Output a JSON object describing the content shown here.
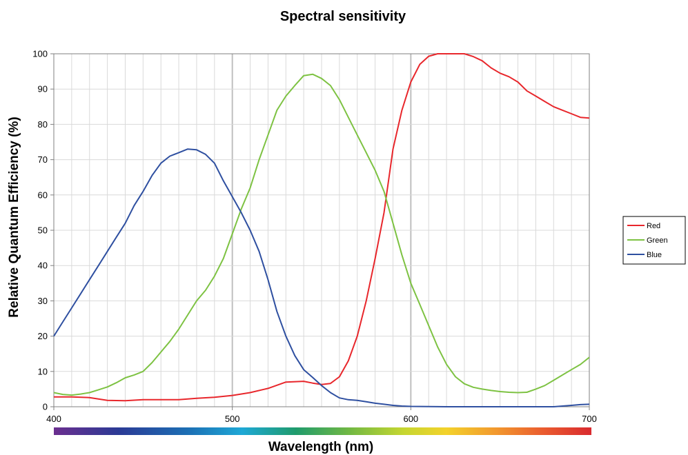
{
  "chart_data": {
    "type": "line",
    "title": "Spectral sensitivity",
    "xlabel": "Wavelength (nm)",
    "ylabel": "Relative Quantum Efficiency (%)",
    "xlim": [
      400,
      700
    ],
    "ylim": [
      0,
      100
    ],
    "x_ticks": [
      400,
      500,
      600,
      700
    ],
    "y_ticks": [
      0,
      10,
      20,
      30,
      40,
      50,
      60,
      70,
      80,
      90,
      100
    ],
    "grid": true,
    "legend_position": "right",
    "spectrum_bar": true,
    "series": [
      {
        "name": "Red",
        "color": "#e8262b",
        "points": [
          [
            400,
            2.8
          ],
          [
            410,
            2.8
          ],
          [
            420,
            2.6
          ],
          [
            430,
            1.8
          ],
          [
            440,
            1.7
          ],
          [
            450,
            2
          ],
          [
            460,
            2
          ],
          [
            470,
            2
          ],
          [
            480,
            2.4
          ],
          [
            490,
            2.7
          ],
          [
            500,
            3.2
          ],
          [
            510,
            4
          ],
          [
            520,
            5.2
          ],
          [
            530,
            7
          ],
          [
            540,
            7.2
          ],
          [
            545,
            6.7
          ],
          [
            550,
            6.3
          ],
          [
            555,
            6.6
          ],
          [
            560,
            8.5
          ],
          [
            565,
            13
          ],
          [
            570,
            20
          ],
          [
            575,
            30
          ],
          [
            580,
            42
          ],
          [
            585,
            55
          ],
          [
            590,
            73
          ],
          [
            595,
            84
          ],
          [
            600,
            92
          ],
          [
            605,
            97
          ],
          [
            610,
            99.3
          ],
          [
            615,
            100
          ],
          [
            620,
            100
          ],
          [
            625,
            100
          ],
          [
            630,
            100
          ],
          [
            635,
            99.2
          ],
          [
            640,
            98
          ],
          [
            645,
            96
          ],
          [
            650,
            94.5
          ],
          [
            655,
            93.5
          ],
          [
            660,
            92
          ],
          [
            665,
            89.5
          ],
          [
            670,
            88
          ],
          [
            675,
            86.5
          ],
          [
            680,
            85
          ],
          [
            685,
            84
          ],
          [
            690,
            83
          ],
          [
            695,
            82
          ],
          [
            700,
            81.8
          ]
        ]
      },
      {
        "name": "Green",
        "color": "#7dc242",
        "points": [
          [
            400,
            4
          ],
          [
            405,
            3.5
          ],
          [
            410,
            3.3
          ],
          [
            415,
            3.6
          ],
          [
            420,
            4
          ],
          [
            425,
            4.8
          ],
          [
            430,
            5.6
          ],
          [
            435,
            6.8
          ],
          [
            440,
            8.2
          ],
          [
            445,
            9
          ],
          [
            450,
            10
          ],
          [
            455,
            12.5
          ],
          [
            460,
            15.5
          ],
          [
            465,
            18.5
          ],
          [
            470,
            22
          ],
          [
            475,
            26
          ],
          [
            480,
            30
          ],
          [
            485,
            33
          ],
          [
            490,
            37
          ],
          [
            495,
            42
          ],
          [
            500,
            49
          ],
          [
            505,
            56
          ],
          [
            510,
            62
          ],
          [
            515,
            70
          ],
          [
            520,
            77
          ],
          [
            525,
            84
          ],
          [
            530,
            88
          ],
          [
            535,
            91
          ],
          [
            540,
            93.8
          ],
          [
            545,
            94.2
          ],
          [
            550,
            93
          ],
          [
            555,
            91
          ],
          [
            560,
            87
          ],
          [
            565,
            82
          ],
          [
            570,
            77
          ],
          [
            575,
            72
          ],
          [
            580,
            67
          ],
          [
            585,
            61
          ],
          [
            590,
            52
          ],
          [
            595,
            43
          ],
          [
            600,
            35
          ],
          [
            605,
            29
          ],
          [
            610,
            23
          ],
          [
            615,
            17
          ],
          [
            620,
            12
          ],
          [
            625,
            8.5
          ],
          [
            630,
            6.5
          ],
          [
            635,
            5.5
          ],
          [
            640,
            5
          ],
          [
            645,
            4.6
          ],
          [
            650,
            4.3
          ],
          [
            655,
            4.1
          ],
          [
            660,
            4
          ],
          [
            665,
            4.1
          ],
          [
            670,
            5
          ],
          [
            675,
            6
          ],
          [
            680,
            7.5
          ],
          [
            685,
            9
          ],
          [
            690,
            10.5
          ],
          [
            695,
            12
          ],
          [
            700,
            14
          ]
        ]
      },
      {
        "name": "Blue",
        "color": "#2e4fa0",
        "points": [
          [
            400,
            20
          ],
          [
            405,
            24
          ],
          [
            410,
            28
          ],
          [
            415,
            32
          ],
          [
            420,
            36
          ],
          [
            425,
            40
          ],
          [
            430,
            44
          ],
          [
            435,
            48
          ],
          [
            440,
            52
          ],
          [
            445,
            57
          ],
          [
            450,
            61
          ],
          [
            455,
            65.5
          ],
          [
            460,
            69
          ],
          [
            465,
            71
          ],
          [
            470,
            72
          ],
          [
            475,
            73
          ],
          [
            480,
            72.8
          ],
          [
            485,
            71.5
          ],
          [
            490,
            69
          ],
          [
            495,
            64
          ],
          [
            500,
            59.5
          ],
          [
            505,
            55
          ],
          [
            510,
            50
          ],
          [
            515,
            44
          ],
          [
            520,
            36
          ],
          [
            525,
            27
          ],
          [
            530,
            20
          ],
          [
            535,
            14.5
          ],
          [
            540,
            10.5
          ],
          [
            545,
            8.3
          ],
          [
            550,
            6
          ],
          [
            555,
            4
          ],
          [
            560,
            2.5
          ],
          [
            565,
            2
          ],
          [
            570,
            1.8
          ],
          [
            575,
            1.4
          ],
          [
            580,
            1
          ],
          [
            585,
            0.7
          ],
          [
            590,
            0.4
          ],
          [
            595,
            0.2
          ],
          [
            600,
            0.1
          ],
          [
            620,
            0
          ],
          [
            640,
            0
          ],
          [
            660,
            0
          ],
          [
            680,
            0
          ],
          [
            690,
            0.4
          ],
          [
            695,
            0.6
          ],
          [
            700,
            0.7
          ]
        ]
      }
    ]
  }
}
